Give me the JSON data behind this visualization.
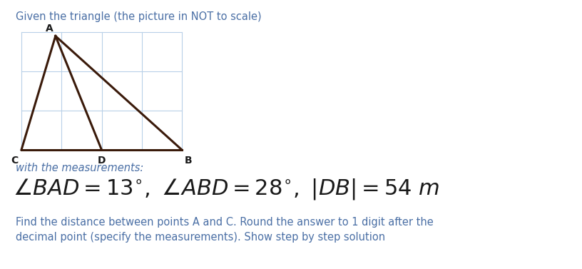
{
  "title": "Given the triangle (the picture in NOT to scale)",
  "title_color": "#4a6fa5",
  "title_fontsize": 10.5,
  "with_measurements": "with the measurements:",
  "measurements_fontsize": 10.5,
  "measurements_color": "#4a6fa5",
  "question_line1": "Find the distance between points A and C. Round the answer to 1 digit after the",
  "question_line2": "decimal point (specify the measurements). Show step by step solution",
  "question_fontsize": 10.5,
  "question_color": "#4a6fa5",
  "triangle_color": "#3a1a0a",
  "grid_color": "#b8d0e8",
  "background_color": "#ffffff",
  "label_fontsize": 10,
  "label_color": "#1a1a1a",
  "formula_fontsize": 22
}
